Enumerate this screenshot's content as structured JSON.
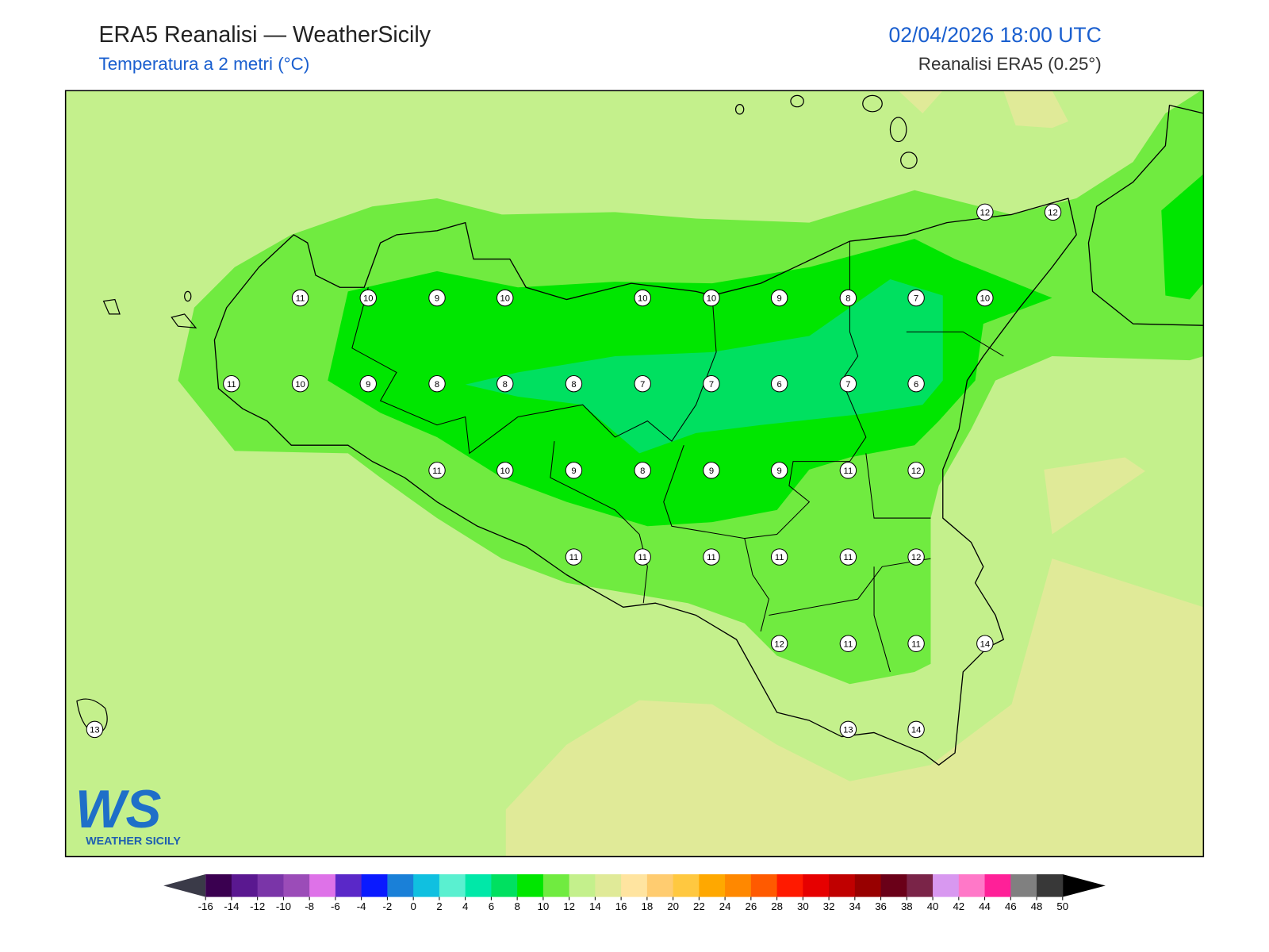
{
  "header": {
    "title": "ERA5 Reanalisi — WeatherSicily",
    "subtitle": "Temperatura a 2 metri (°C)",
    "datetime": "02/04/2026 18:00 UTC",
    "source": "Reanalisi ERA5 (0.25°)"
  },
  "map_labels": [
    12,
    12,
    11,
    10,
    9,
    10,
    10,
    10,
    9,
    8,
    7,
    10,
    11,
    10,
    9,
    8,
    8,
    8,
    7,
    7,
    6,
    7,
    6,
    11,
    10,
    9,
    8,
    9,
    9,
    11,
    12,
    11,
    11,
    11,
    11,
    11,
    12,
    12,
    11,
    11,
    14,
    13,
    13,
    14
  ],
  "colorbar": {
    "ticks": [
      -16,
      -14,
      -12,
      -10,
      -8,
      -6,
      -4,
      -2,
      0,
      2,
      4,
      6,
      8,
      10,
      12,
      14,
      16,
      18,
      20,
      22,
      24,
      26,
      28,
      30,
      32,
      34,
      36,
      38,
      40,
      42,
      44,
      46,
      48,
      50
    ],
    "colors": [
      "#3a0050",
      "#5a1890",
      "#7a35a8",
      "#9b4cb8",
      "#de72e8",
      "#5a28c8",
      "#0a1aff",
      "#1a80d8",
      "#10c0e0",
      "#5af0d0",
      "#00e8a8",
      "#00e060",
      "#00e600",
      "#70eb40",
      "#c4f08c",
      "#e0ea98",
      "#ffe4a0",
      "#ffcc70",
      "#ffc840",
      "#ffa800",
      "#ff8800",
      "#ff5a00",
      "#ff1a00",
      "#e60000",
      "#c00000",
      "#980000",
      "#6a0018",
      "#7a2448",
      "#d898f0",
      "#ff78c8",
      "#ff2098",
      "#808080",
      "#383838"
    ],
    "under_color": "#3a3a48",
    "over_color": "#000000"
  },
  "logo": {
    "mark": "WS",
    "name": "WEATHER SICILY"
  }
}
